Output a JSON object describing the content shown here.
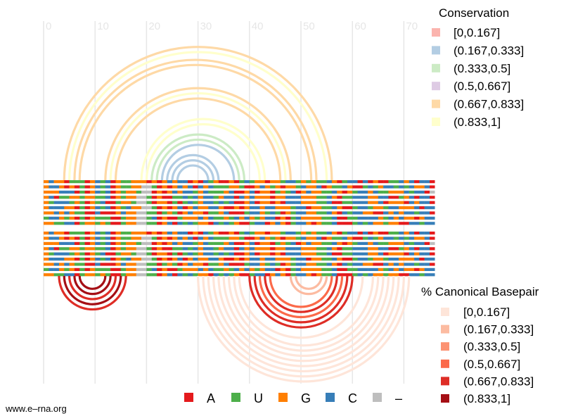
{
  "axis": {
    "ticks": [
      "0",
      "10",
      "20",
      "30",
      "40",
      "50",
      "60",
      "70"
    ]
  },
  "conservation_legend": {
    "title": "Conservation",
    "items": [
      {
        "label": "[0,0.167]",
        "color": "#FBB4AE"
      },
      {
        "label": "(0.167,0.333]",
        "color": "#B3CDE3"
      },
      {
        "label": "(0.333,0.5]",
        "color": "#CCEBC5"
      },
      {
        "label": "(0.5,0.667]",
        "color": "#DECBE4"
      },
      {
        "label": "(0.667,0.833]",
        "color": "#FED9A6"
      },
      {
        "label": "(0.833,1]",
        "color": "#FFFFCC"
      }
    ]
  },
  "canonical_legend": {
    "title": "% Canonical Basepair",
    "items": [
      {
        "label": "[0,0.167]",
        "color": "#FEE5D9"
      },
      {
        "label": "(0.167,0.333]",
        "color": "#FCBBA1"
      },
      {
        "label": "(0.333,0.5]",
        "color": "#FC9272"
      },
      {
        "label": "(0.5,0.667]",
        "color": "#FB6A4A"
      },
      {
        "label": "(0.667,0.833]",
        "color": "#DE2D26"
      },
      {
        "label": "(0.833,1]",
        "color": "#A50F15"
      }
    ]
  },
  "base_legend": {
    "items": [
      {
        "label": "A",
        "color": "#E41A1C"
      },
      {
        "label": "U",
        "color": "#4DAF4A"
      },
      {
        "label": "G",
        "color": "#FF7F00"
      },
      {
        "label": "C",
        "color": "#377EB8"
      },
      {
        "label": "–",
        "color": "#BEBEBE"
      }
    ]
  },
  "credit": "www.e–rna.org",
  "top_arcs": [
    {
      "i": 4,
      "j": 56,
      "conservation": 4
    },
    {
      "i": 5,
      "j": 55,
      "conservation": 5
    },
    {
      "i": 6,
      "j": 53,
      "conservation": 4
    },
    {
      "i": 7,
      "j": 52,
      "conservation": 4
    },
    {
      "i": 12,
      "j": 48,
      "conservation": 4
    },
    {
      "i": 13,
      "j": 47,
      "conservation": 5
    },
    {
      "i": 14,
      "j": 46,
      "conservation": 4
    },
    {
      "i": 19,
      "j": 43,
      "conservation": 5
    },
    {
      "i": 20,
      "j": 42,
      "conservation": 5
    },
    {
      "i": 21,
      "j": 39,
      "conservation": 2
    },
    {
      "i": 22,
      "j": 38,
      "conservation": 2
    },
    {
      "i": 23,
      "j": 37,
      "conservation": 1
    },
    {
      "i": 24,
      "j": 34,
      "conservation": 1
    },
    {
      "i": 25,
      "j": 33,
      "conservation": 1
    },
    {
      "i": 26,
      "j": 32,
      "conservation": 1
    }
  ],
  "bottom_arcs": [
    {
      "i": 3,
      "j": 16,
      "canonical": 4
    },
    {
      "i": 4,
      "j": 15,
      "canonical": 5
    },
    {
      "i": 5,
      "j": 14,
      "canonical": 4
    },
    {
      "i": 6,
      "j": 13,
      "canonical": 5
    },
    {
      "i": 7,
      "j": 12,
      "canonical": 5
    },
    {
      "i": 30,
      "j": 71,
      "canonical": 0
    },
    {
      "i": 31,
      "j": 70,
      "canonical": 0
    },
    {
      "i": 32,
      "j": 69,
      "canonical": 0
    },
    {
      "i": 33,
      "j": 68,
      "canonical": 0
    },
    {
      "i": 34,
      "j": 67,
      "canonical": 0
    },
    {
      "i": 35,
      "j": 66,
      "canonical": 0
    },
    {
      "i": 36,
      "j": 65,
      "canonical": 0
    },
    {
      "i": 37,
      "j": 64,
      "canonical": 0
    },
    {
      "i": 38,
      "j": 62,
      "canonical": 0
    },
    {
      "i": 40,
      "j": 60,
      "canonical": 4
    },
    {
      "i": 41,
      "j": 59,
      "canonical": 4
    },
    {
      "i": 42,
      "j": 58,
      "canonical": 3
    },
    {
      "i": 43,
      "j": 57,
      "canonical": 4
    },
    {
      "i": 44,
      "j": 56,
      "canonical": 3
    },
    {
      "i": 48,
      "j": 55,
      "canonical": 1
    },
    {
      "i": 49,
      "j": 54,
      "canonical": 1
    }
  ],
  "sequences": [
    "GCGGAUUUAGCUCAGUUGGGAGAGCGCCAGACUGAAGAUCUGGAGGUCCUGUGUUCGAUCCACAGAAUUCGCACCA",
    "GCCGAGAUAGCUCAGUUGG--UAGAGCGCACGCUUUGGUAAGCGUGAGGUCGGCAGUUCGAAUCUGCCUCUCGGCACCA",
    "GGGCCCAUAGCUCAGUGGU--AGAGCGCCUGCUUUGCAAGCAGGAUGUCAGCGGUUCGAGUCCGCUUGGGCUCCA",
    "GCAUUGGUGGUUCAGUGG--UAGAAUUCUCGCCUGCCACGCGGGAGGCCCGGGUUCGAUUCCCGGCCAAUGCACCA",
    "GUCCCUGUAGUCAAUGGU--UAGGAUAUCUGCCUCUCAAGCAGGAGACCCGGGUUCAAUUCCCGGCAGGGACGCCA",
    "GCCCGGAUAGCUCAGUCGG--UAGAGCAGCGGCCGAAGAGCCGCCGGGUCCAGGUUCGAAUCCUGGUCCGGGCACCA",
    "GGCGCGUUAACAAAGCGG--UUAUGUAGCGGAUUGCAAAUCCGUCUAGUCCGGUUCGACUCCGGAACGCGCCUCCA",
    "UCCGUGAUAGUUUAAUGG--UCAGAAUGGGCGCUUGUCGCGUGCCAGAUCGGGGUUCAAUUCCCCGUCGCGGAGCCA",
    "GGUUCCAUGGUGUAAUGG--UUAGCACUCUGGACUCUGAAUCCAGCGAUCCGAGUUCAAAUCUCGGUGGAACCUCCA"
  ],
  "sequences_bottom": [
    "GCGGAUUUAGCUCAGUUGGGAGAGCGCCAGACUGAAGAUCUGGAGGUCCUGUGUUCGAUCCACAGAAUUCGCACCA",
    "GCCGAGAUAGCUCAGUUGG--UAGAGCGCACGCUUUGGUAAGCGUGAGGUCGGCAGUUCGAAUCUGCCUCUCGGCACCA",
    "GGGCCCAUAGCUCAGUGGU--AGAGCGCCUGCUUUGCAAGCAGGAUGUCAGCGGUUCGAGUCCGCUUGGGCUCCA",
    "GCAUUGGUGGUUCAGUGG--UAGAAUUCUCGCCUGCCACGCGGGAGGCCCGGGUUCGAUUCCCGGCCAAUGCACCA",
    "GUCCCUGUAGUCAAUGGU--UAGGAUAUCUGCCUCUCAAGCAGGAGACCCGGGUUCAAUUCCCGGCAGGGACGCCA",
    "GCCCGGAUAGCUCAGUCGG--UAGAGCAGCGGCCGAAGAGCCGCCGGGUCCAGGUUCGAAUCCUGGUCCGGGCACCA",
    "GGCGCGUUAACAAAGCGG--UUAUGUAGCGGAUUGCAAAUCCGUCUAGUCCGGUUCGACUCCGGAACGCGCCUCCA",
    "UCCGUGAUAGUUUAAUGG--UCAGAAUGGGCGCUUGUCGCGUGCCAGAUCGGGGUUCAAUUCCCCGUCGCGGAGCCA",
    "GGUUCCAUGGUGUAAUGG--UUAGCACUCUGGACUCUGAAUCCAGCGAUCCGAGUUCAAAUCUCGGUGGAACCUCCA"
  ]
}
